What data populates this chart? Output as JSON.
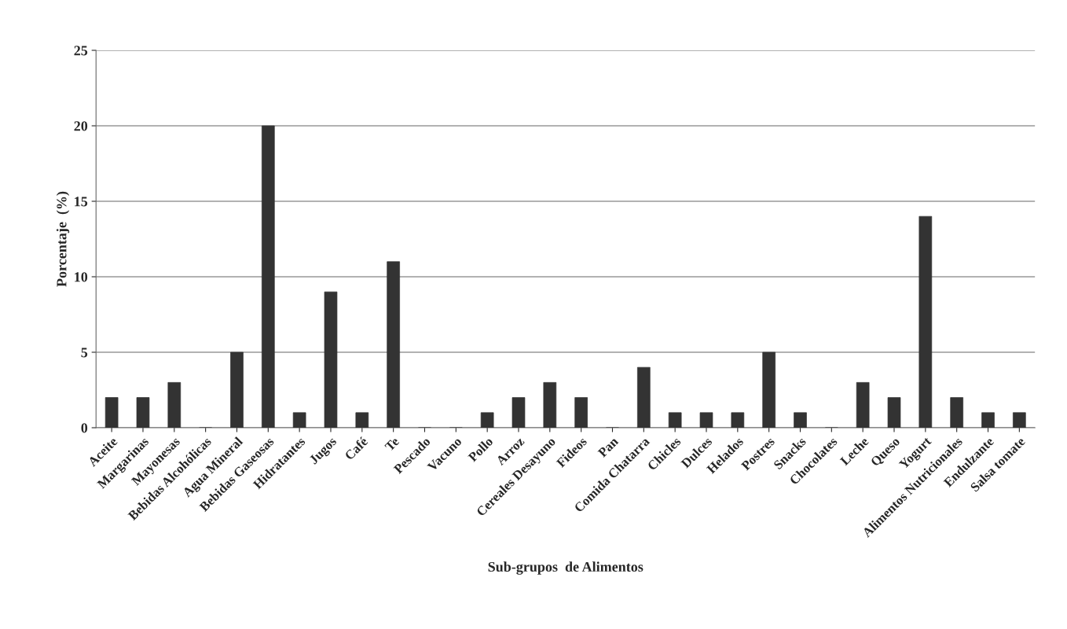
{
  "chart_data": {
    "type": "bar",
    "xlabel": "Sub-grupos  de Alimentos",
    "ylabel": "Porcentaje  (%)",
    "categories": [
      "Aceite",
      "Margarinas",
      "Mayonesas",
      "Bebidas Alcohólicas",
      "Agua Mineral",
      "Bebidas Gaseosas",
      "Hidratantes",
      "Jugos",
      "Café",
      "Te",
      "Pescado",
      "Vacuno",
      "Pollo",
      "Arroz",
      "Cereales Desayuno",
      "Fideos",
      "Pan",
      "Comida Chatarra",
      "Chicles",
      "Dulces",
      "Helados",
      "Postres",
      "Snacks",
      "Chocolates",
      "Leche",
      "Queso",
      "Yogurt",
      "Alimentos Nutricionales",
      "Endulzante",
      "Salsa tomate"
    ],
    "values": [
      2,
      2,
      3,
      0,
      5,
      20,
      1,
      9,
      1,
      11,
      0,
      0,
      1,
      2,
      3,
      2,
      0,
      4,
      1,
      1,
      1,
      5,
      1,
      0,
      3,
      2,
      14,
      2,
      1,
      1
    ],
    "color": "#333333",
    "ylim": [
      0,
      25
    ],
    "yticks": [
      0,
      5,
      10,
      15,
      20,
      25
    ],
    "grid": "y"
  }
}
